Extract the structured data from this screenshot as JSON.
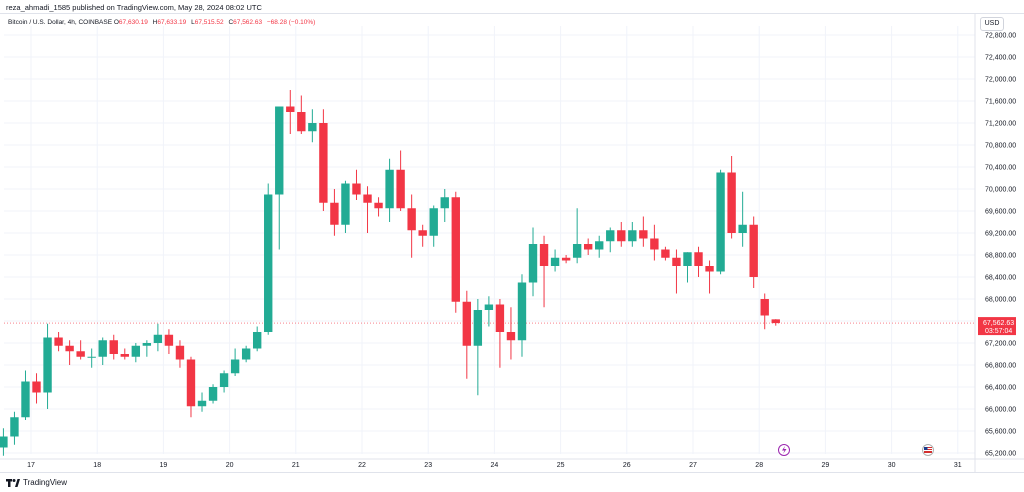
{
  "publisher_line": "reza_ahmadi_1585 published on TradingView.com, May 28, 2024 08:02 UTC",
  "legend": {
    "symbol": "Bitcoin / U.S. Dollar, 4h, COINBASE",
    "o_label": "O",
    "o_value": "67,630.19",
    "h_label": "H",
    "h_value": "67,633.19",
    "l_label": "L",
    "l_value": "67,515.52",
    "c_label": "C",
    "c_value": "67,562.63",
    "change": "−68.28 (−0.10%)"
  },
  "currency_button": "USD",
  "last_price": {
    "value": "67,562.63",
    "countdown": "03:57:04",
    "color": "#f23645"
  },
  "footer_brand": "TradingView",
  "icons": {
    "logo": "tradingview-logo-icon",
    "flash": "lightning-event-icon",
    "flag": "us-flag-event-icon"
  },
  "colors": {
    "up": "#22ab94",
    "down": "#f23645",
    "grid": "#f0f3fa"
  },
  "chart_data": {
    "type": "candlestick",
    "ylim": [
      65200,
      72800
    ],
    "y_ticks": [
      "72,800.00",
      "72,400.00",
      "72,000.00",
      "71,600.00",
      "71,200.00",
      "70,800.00",
      "70,400.00",
      "70,000.00",
      "69,600.00",
      "69,200.00",
      "68,800.00",
      "68,400.00",
      "68,000.00",
      "67,600.00",
      "67,200.00",
      "66,800.00",
      "66,400.00",
      "66,000.00",
      "65,600.00",
      "65,200.00"
    ],
    "y_tick_values": [
      72800,
      72400,
      72000,
      71600,
      71200,
      70800,
      70400,
      70000,
      69600,
      69200,
      68800,
      68400,
      68000,
      67600,
      67200,
      66800,
      66400,
      66000,
      65600,
      65200
    ],
    "x_ticks": [
      "17",
      "18",
      "19",
      "20",
      "21",
      "22",
      "23",
      "24",
      "25",
      "26",
      "27",
      "28",
      "29",
      "30",
      "31"
    ],
    "candle_interval": "4h",
    "candles_ohlc": [
      [
        65800,
        65850,
        65050,
        65300
      ],
      [
        65300,
        65650,
        65150,
        65500
      ],
      [
        65500,
        65950,
        65350,
        65850
      ],
      [
        65850,
        66700,
        65800,
        66500
      ],
      [
        66500,
        66650,
        66100,
        66300
      ],
      [
        66300,
        67550,
        66000,
        67300
      ],
      [
        67300,
        67400,
        67050,
        67150
      ],
      [
        67150,
        67250,
        66800,
        67050
      ],
      [
        67050,
        67250,
        66900,
        66950
      ],
      [
        66950,
        67100,
        66750,
        66950
      ],
      [
        66950,
        67300,
        66800,
        67250
      ],
      [
        67250,
        67350,
        66900,
        67000
      ],
      [
        67000,
        67100,
        66900,
        66950
      ],
      [
        66950,
        67200,
        66850,
        67150
      ],
      [
        67150,
        67250,
        66950,
        67200
      ],
      [
        67200,
        67550,
        67050,
        67350
      ],
      [
        67350,
        67450,
        67000,
        67150
      ],
      [
        67150,
        67250,
        66750,
        66900
      ],
      [
        66900,
        66950,
        65850,
        66050
      ],
      [
        66050,
        66300,
        65950,
        66150
      ],
      [
        66150,
        66450,
        66100,
        66400
      ],
      [
        66400,
        66700,
        66300,
        66650
      ],
      [
        66650,
        67100,
        66600,
        66900
      ],
      [
        66900,
        67150,
        66850,
        67100
      ],
      [
        67100,
        67500,
        67050,
        67400
      ],
      [
        67400,
        70100,
        67350,
        69900
      ],
      [
        69900,
        71300,
        68900,
        71500
      ],
      [
        71500,
        71800,
        71000,
        71400
      ],
      [
        71400,
        71700,
        71000,
        71050
      ],
      [
        71050,
        71450,
        70850,
        71200
      ],
      [
        71200,
        71450,
        69600,
        69750
      ],
      [
        69750,
        70000,
        69150,
        69350
      ],
      [
        69350,
        70150,
        69200,
        70100
      ],
      [
        70100,
        70350,
        69800,
        69900
      ],
      [
        69900,
        70050,
        69200,
        69750
      ],
      [
        69750,
        69850,
        69500,
        69650
      ],
      [
        69650,
        70550,
        69400,
        70350
      ],
      [
        70350,
        70700,
        69600,
        69650
      ],
      [
        69650,
        69900,
        68750,
        69250
      ],
      [
        69250,
        69350,
        68950,
        69150
      ],
      [
        69150,
        69700,
        68950,
        69650
      ],
      [
        69650,
        70000,
        69400,
        69850
      ],
      [
        69850,
        69950,
        67750,
        67950
      ],
      [
        67950,
        68150,
        66550,
        67150
      ],
      [
        67150,
        68000,
        66250,
        67800
      ],
      [
        67800,
        68050,
        67500,
        67900
      ],
      [
        67900,
        68000,
        66750,
        67400
      ],
      [
        67400,
        67850,
        66900,
        67250
      ],
      [
        67250,
        68450,
        66950,
        68300
      ],
      [
        68300,
        69300,
        68050,
        69000
      ],
      [
        69000,
        69150,
        67850,
        68600
      ],
      [
        68600,
        68900,
        68500,
        68750
      ],
      [
        68750,
        68800,
        68650,
        68700
      ],
      [
        68750,
        69650,
        68650,
        69000
      ],
      [
        69000,
        69100,
        68800,
        68900
      ],
      [
        68900,
        69150,
        68750,
        69050
      ],
      [
        69050,
        69300,
        68850,
        69250
      ],
      [
        69250,
        69400,
        68950,
        69050
      ],
      [
        69050,
        69400,
        68950,
        69250
      ],
      [
        69250,
        69500,
        68950,
        69100
      ],
      [
        69100,
        69350,
        68700,
        68900
      ],
      [
        68900,
        68950,
        68700,
        68750
      ],
      [
        68750,
        68900,
        68100,
        68600
      ],
      [
        68600,
        68850,
        68300,
        68850
      ],
      [
        68850,
        68950,
        68400,
        68600
      ],
      [
        68600,
        68700,
        68100,
        68500
      ],
      [
        68500,
        70350,
        68450,
        70300
      ],
      [
        70300,
        70600,
        69100,
        69200
      ],
      [
        69200,
        69950,
        68950,
        69350
      ],
      [
        69350,
        69500,
        68200,
        68400
      ],
      [
        68000,
        68100,
        67450,
        67700
      ],
      [
        67630,
        67633,
        67515,
        67562
      ]
    ]
  }
}
